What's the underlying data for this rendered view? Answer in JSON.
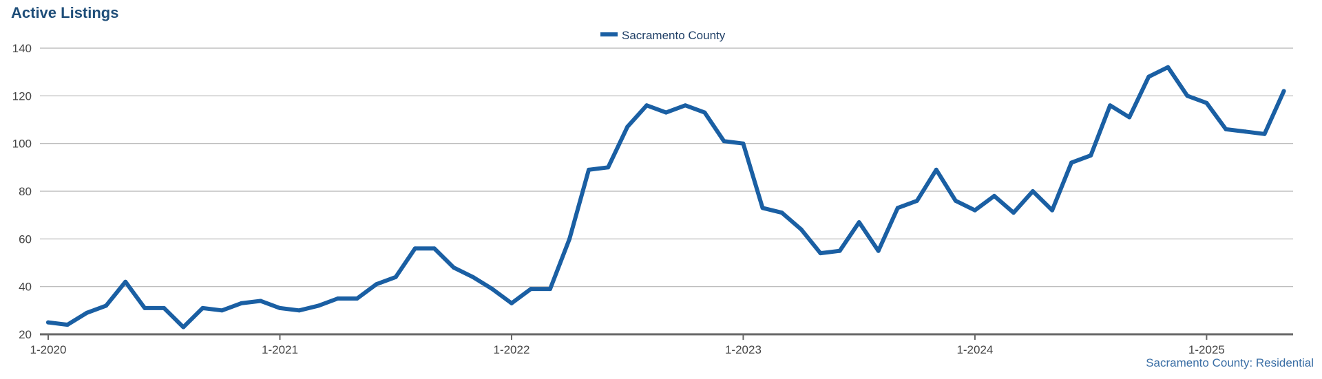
{
  "chart_data": {
    "type": "line",
    "title": "Active Listings",
    "footnote": "Sacramento County: Residential",
    "ylim": [
      20,
      140
    ],
    "yticks": [
      "20",
      "40",
      "60",
      "80",
      "100",
      "120",
      "140"
    ],
    "xticks": [
      "1-2020",
      "1-2021",
      "1-2022",
      "1-2023",
      "1-2024",
      "1-2025"
    ],
    "grid": true,
    "legend_position": "top-center",
    "series": [
      {
        "name": "Sacramento County",
        "color": "#1a5fa3",
        "x": [
          "2020-01",
          "2020-02",
          "2020-03",
          "2020-04",
          "2020-05",
          "2020-06",
          "2020-07",
          "2020-08",
          "2020-09",
          "2020-10",
          "2020-11",
          "2020-12",
          "2021-01",
          "2021-02",
          "2021-03",
          "2021-04",
          "2021-05",
          "2021-06",
          "2021-07",
          "2021-08",
          "2021-09",
          "2021-10",
          "2021-11",
          "2021-12",
          "2022-01",
          "2022-02",
          "2022-03",
          "2022-04",
          "2022-05",
          "2022-06",
          "2022-07",
          "2022-08",
          "2022-09",
          "2022-10",
          "2022-11",
          "2022-12",
          "2023-01",
          "2023-02",
          "2023-03",
          "2023-04",
          "2023-05",
          "2023-06",
          "2023-07",
          "2023-08",
          "2023-09",
          "2023-10",
          "2023-11",
          "2023-12",
          "2024-01",
          "2024-02",
          "2024-03",
          "2024-04",
          "2024-05",
          "2024-06",
          "2024-07",
          "2024-08",
          "2024-09",
          "2024-10",
          "2024-11",
          "2024-12",
          "2025-01",
          "2025-02",
          "2025-03",
          "2025-04",
          "2025-05"
        ],
        "values": [
          25,
          24,
          29,
          32,
          42,
          31,
          31,
          23,
          31,
          30,
          33,
          34,
          31,
          30,
          32,
          35,
          35,
          41,
          44,
          56,
          56,
          48,
          44,
          39,
          33,
          39,
          39,
          60,
          89,
          90,
          107,
          116,
          113,
          116,
          113,
          101,
          100,
          73,
          71,
          64,
          54,
          55,
          67,
          55,
          73,
          76,
          89,
          76,
          72,
          78,
          71,
          80,
          72,
          92,
          95,
          116,
          111,
          128,
          132,
          120,
          117,
          106,
          105,
          104,
          122
        ]
      }
    ]
  }
}
